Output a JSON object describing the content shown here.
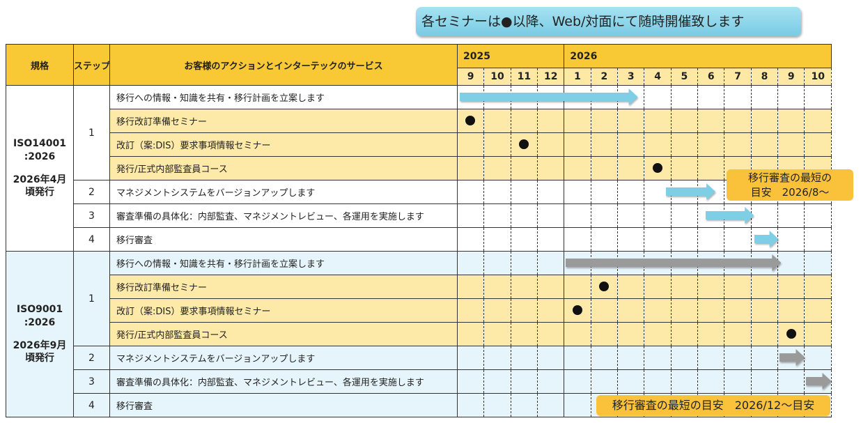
{
  "banner": "各セミナーは●以降、Web/対面にて随時開催致します",
  "header": {
    "standard": "規格",
    "step": "ステップ",
    "action": "お客様のアクションとインターテックのサービス",
    "years": [
      "2025",
      "2026"
    ],
    "months": [
      "9",
      "10",
      "11",
      "12",
      "1",
      "2",
      "3",
      "4",
      "5",
      "6",
      "7",
      "8",
      "9",
      "10"
    ]
  },
  "colors": {
    "header": "#f9c835",
    "seminar_row": "#fde9a8",
    "iso9001_row": "#e6f5fb",
    "arrow_14001": "#7ecfe6",
    "arrow_9001": "#9a9a9a",
    "callout": "#f9c23a"
  },
  "sections": [
    {
      "standard": "ISO14001\n:2026",
      "issue": "2026年4月\n頃発行",
      "arrow_color": "#7ecfe6",
      "rows": [
        {
          "step": "1",
          "action": "移行への情報・知識を共有・移行計画を立案します",
          "arrow": [
            0.1,
            6.75
          ]
        },
        {
          "step": "1",
          "action": "移行改訂準備セミナー",
          "dot": "2025/9"
        },
        {
          "step": "1",
          "action": "改訂（案:DIS）要求事項情報セミナー",
          "dot": "2025/11"
        },
        {
          "step": "1",
          "action": "発行/正式内部監査員コース",
          "dot": "2026/4"
        },
        {
          "step": "2",
          "action": "マネジメントシステムをバージョンアップします",
          "arrow": [
            7.8,
            9.65
          ]
        },
        {
          "step": "3",
          "action": "審査準備の具体化：内部監査、マネジメントレビュー、各運用を実施します",
          "arrow": [
            9.3,
            11.1
          ]
        },
        {
          "step": "4",
          "action": "移行審査",
          "arrow": [
            11.1,
            12.0
          ]
        }
      ],
      "callout": "移行審査の最短の\n目安　2026/8～"
    },
    {
      "standard": "ISO9001\n:2026",
      "issue": "2026年9月\n頃発行",
      "arrow_color": "#9a9a9a",
      "rows": [
        {
          "step": "1",
          "action": "移行への情報・知識を共有・移行計画を立案します",
          "arrow": [
            4.05,
            12.1
          ]
        },
        {
          "step": "1",
          "action": "移行改訂準備セミナー",
          "dot": "2026/2"
        },
        {
          "step": "1",
          "action": "改訂（案:DIS）要求事項情報セミナー",
          "dot": "2026/1"
        },
        {
          "step": "1",
          "action": "発行/正式内部監査員コース",
          "dot": "2026/9"
        },
        {
          "step": "2",
          "action": "マネジメントシステムをバージョンアップします",
          "arrow": [
            12.05,
            13.0
          ]
        },
        {
          "step": "3",
          "action": "審査準備の具体化：内部監査、マネジメントレビュー、各運用を実施します",
          "arrow": [
            13.05,
            14.0
          ]
        },
        {
          "step": "4",
          "action": "移行審査"
        }
      ],
      "callout": "移行審査の最短の目安　2026/12～目安"
    }
  ]
}
